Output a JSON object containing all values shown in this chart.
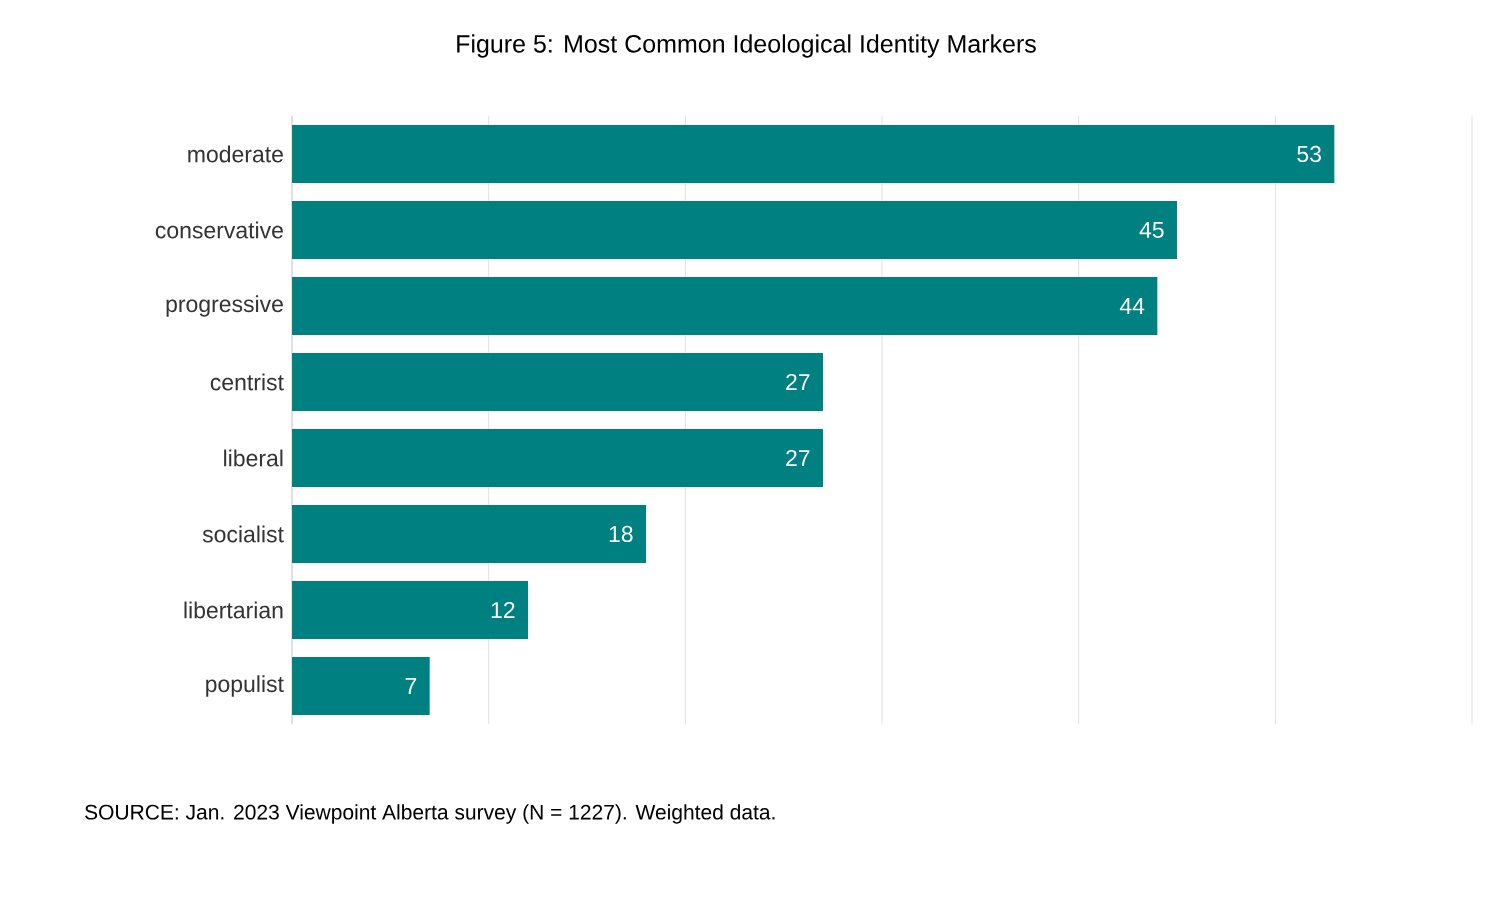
{
  "chart_data": {
    "type": "bar",
    "orientation": "horizontal",
    "title": "Figure 5: Most Common Ideological Identity Markers",
    "categories": [
      "moderate",
      "conservative",
      "progressive",
      "centrist",
      "liberal",
      "socialist",
      "libertarian",
      "populist"
    ],
    "values": [
      53,
      45,
      44,
      27,
      27,
      18,
      12,
      7
    ],
    "color": "#008080",
    "xlim": [
      0,
      60
    ],
    "tick_labels": "y",
    "grid": "x",
    "data_labels": true,
    "annotations": [
      "SOURCE: Jan. 2023 Viewpoint Alberta survey (N = 1227). Weighted data."
    ]
  }
}
